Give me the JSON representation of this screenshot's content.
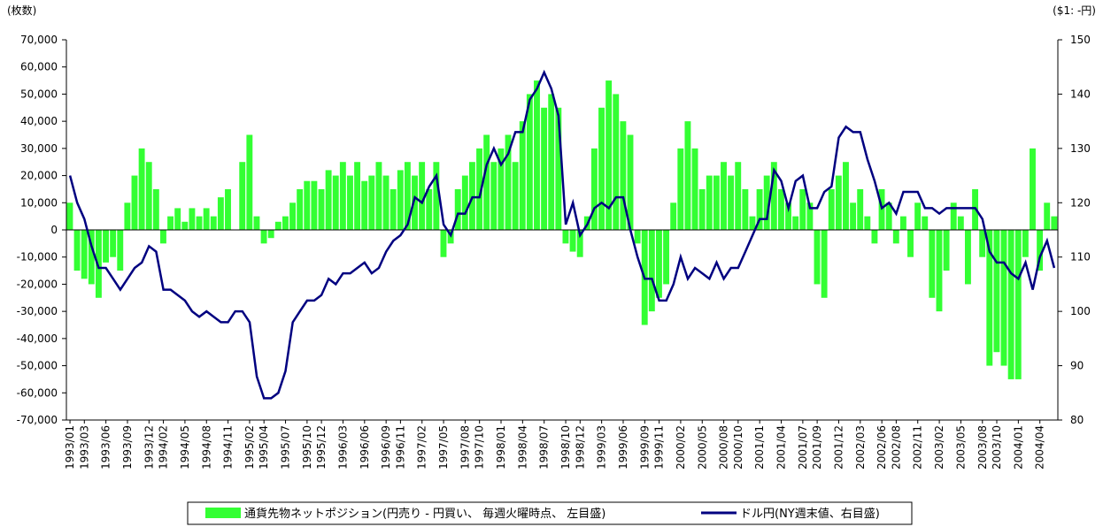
{
  "chart_data": {
    "type": "bar_line",
    "y_unit": "(枚数)",
    "y2_unit": "($1: -円)",
    "categories": [
      "1993/01",
      null,
      "1993/03",
      null,
      null,
      "1993/06",
      null,
      null,
      "1993/09",
      null,
      null,
      "1993/12",
      null,
      "1994/02",
      null,
      null,
      "1994/05",
      null,
      null,
      "1994/08",
      null,
      null,
      "1994/11",
      null,
      null,
      "1995/02",
      null,
      "1995/04",
      null,
      null,
      "1995/07",
      null,
      null,
      "1995/10",
      null,
      "1995/12",
      null,
      null,
      "1996/03",
      null,
      null,
      "1996/06",
      null,
      null,
      "1996/09",
      null,
      "1996/11",
      null,
      null,
      "1997/02",
      null,
      null,
      "1997/05",
      null,
      null,
      "1997/08",
      null,
      "1997/10",
      null,
      null,
      "1998/01",
      null,
      null,
      "1998/04",
      null,
      null,
      "1998/07",
      null,
      null,
      "1998/10",
      null,
      "1998/12",
      null,
      null,
      "1999/03",
      null,
      null,
      "1999/06",
      null,
      null,
      "1999/09",
      null,
      "1999/11",
      null,
      null,
      "2000/02",
      null,
      null,
      "2000/05",
      null,
      null,
      "2000/08",
      null,
      "2000/10",
      null,
      null,
      "2001/01",
      null,
      null,
      "2001/04",
      null,
      null,
      "2001/07",
      null,
      "2001/09",
      null,
      null,
      "2001/12",
      null,
      null,
      "2002/03",
      null,
      null,
      "2002/06",
      null,
      "2002/08",
      null,
      null,
      "2002/11",
      null,
      null,
      "2003/02",
      null,
      null,
      "2003/05",
      null,
      null,
      "2003/08",
      null,
      "2003/10",
      null,
      null,
      "2004/01",
      null,
      null,
      "2004/04",
      null,
      null
    ],
    "series": [
      {
        "name": "通貨先物ネットポジション(円売り - 円買い、 毎週火曜時点、 左目盛)",
        "color": "#33ff33",
        "kind": "bar",
        "values": [
          10000,
          -15000,
          -18000,
          -20000,
          -25000,
          -12000,
          -10000,
          -15000,
          10000,
          20000,
          30000,
          25000,
          15000,
          -5000,
          5000,
          8000,
          3000,
          8000,
          5000,
          8000,
          5000,
          12000,
          15000,
          0,
          25000,
          35000,
          5000,
          -5000,
          -3000,
          3000,
          5000,
          10000,
          15000,
          18000,
          18000,
          15000,
          22000,
          20000,
          25000,
          20000,
          25000,
          18000,
          20000,
          25000,
          20000,
          15000,
          22000,
          25000,
          20000,
          25000,
          15000,
          25000,
          -10000,
          -5000,
          15000,
          20000,
          25000,
          30000,
          35000,
          25000,
          30000,
          35000,
          25000,
          40000,
          50000,
          55000,
          45000,
          50000,
          45000,
          -5000,
          -8000,
          -10000,
          5000,
          30000,
          45000,
          55000,
          50000,
          40000,
          35000,
          -5000,
          -35000,
          -30000,
          -25000,
          -20000,
          10000,
          30000,
          40000,
          30000,
          15000,
          20000,
          20000,
          25000,
          20000,
          25000,
          15000,
          5000,
          15000,
          20000,
          25000,
          15000,
          10000,
          5000,
          15000,
          10000,
          -20000,
          -25000,
          15000,
          20000,
          25000,
          10000,
          15000,
          5000,
          -5000,
          15000,
          10000,
          -5000,
          5000,
          -10000,
          10000,
          5000,
          -25000,
          -30000,
          -15000,
          10000,
          5000,
          -20000,
          15000,
          -10000,
          -50000,
          -45000,
          -50000,
          -55000,
          -55000,
          -10000,
          30000,
          -15000,
          10000,
          5000
        ]
      },
      {
        "name": "ドル円(NY週末値、右目盛)",
        "color": "#000080",
        "kind": "line",
        "axis": "y2",
        "values": [
          125,
          120,
          117,
          112,
          108,
          108,
          106,
          104,
          106,
          108,
          109,
          112,
          111,
          104,
          104,
          103,
          102,
          100,
          99,
          100,
          99,
          98,
          98,
          100,
          100,
          98,
          88,
          84,
          84,
          85,
          89,
          98,
          100,
          102,
          102,
          103,
          106,
          105,
          107,
          107,
          108,
          109,
          107,
          108,
          111,
          113,
          114,
          116,
          121,
          120,
          123,
          125,
          116,
          114,
          118,
          118,
          121,
          121,
          127,
          130,
          127,
          129,
          133,
          133,
          139,
          141,
          144,
          141,
          136,
          116,
          120,
          114,
          116,
          119,
          120,
          119,
          121,
          121,
          115,
          110,
          106,
          106,
          102,
          102,
          105,
          110,
          106,
          108,
          107,
          106,
          109,
          106,
          108,
          108,
          111,
          114,
          117,
          117,
          126,
          124,
          119,
          124,
          125,
          119,
          119,
          122,
          123,
          132,
          134,
          133,
          133,
          128,
          124,
          119,
          120,
          118,
          122,
          122,
          122,
          119,
          119,
          118,
          119,
          119,
          119,
          119,
          119,
          117,
          111,
          109,
          109,
          107,
          106,
          109,
          104,
          110,
          113,
          108
        ]
      }
    ],
    "ylim": [
      -70000,
      70000
    ],
    "yticks": [
      {
        "value": -70000,
        "label": "-70,000"
      },
      {
        "value": -60000,
        "label": "-60,000"
      },
      {
        "value": -50000,
        "label": "-50,000"
      },
      {
        "value": -40000,
        "label": "-40,000"
      },
      {
        "value": -30000,
        "label": "-30,000"
      },
      {
        "value": -20000,
        "label": "-20,000"
      },
      {
        "value": -10000,
        "label": "-10,000"
      },
      0,
      {
        "value": 10000,
        "label": "10,000"
      },
      {
        "value": 20000,
        "label": "20,000"
      },
      {
        "value": 30000,
        "label": "30,000"
      },
      {
        "value": 40000,
        "label": "40,000"
      },
      {
        "value": 50000,
        "label": "50,000"
      },
      {
        "value": 60000,
        "label": "60,000"
      },
      {
        "value": 70000,
        "label": "70,000"
      }
    ],
    "y2lim": [
      80,
      150
    ],
    "y2ticks": [
      80,
      90,
      100,
      110,
      120,
      130,
      140,
      150
    ]
  }
}
